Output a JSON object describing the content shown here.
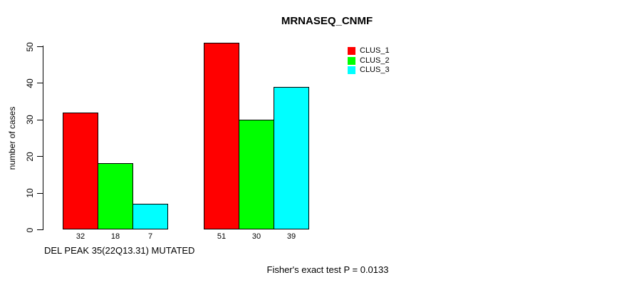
{
  "title": "MRNASEQ_CNMF",
  "footer": "Fisher's exact test P = 0.0133",
  "legend": {
    "position": "top-right",
    "items": [
      {
        "label": "CLUS_1",
        "color": "#ff0000"
      },
      {
        "label": "CLUS_2",
        "color": "#00ff00"
      },
      {
        "label": "CLUS_3",
        "color": "#00ffff"
      }
    ]
  },
  "chart_data": {
    "type": "bar",
    "title": "MRNASEQ_CNMF",
    "xlabel": "DEL PEAK 35(22Q13.31) MUTATED",
    "ylabel": "number of cases",
    "ylim": [
      0,
      50
    ],
    "yticks": [
      0,
      10,
      20,
      30,
      40,
      50
    ],
    "grid": false,
    "legend_position": "top-right",
    "bar_value_labels_shown": true,
    "group_count": 2,
    "series": [
      {
        "name": "CLUS_1",
        "color": "#ff0000",
        "values": [
          32,
          51
        ]
      },
      {
        "name": "CLUS_2",
        "color": "#00ff00",
        "values": [
          18,
          30
        ]
      },
      {
        "name": "CLUS_3",
        "color": "#00ffff",
        "values": [
          7,
          39
        ]
      }
    ]
  }
}
